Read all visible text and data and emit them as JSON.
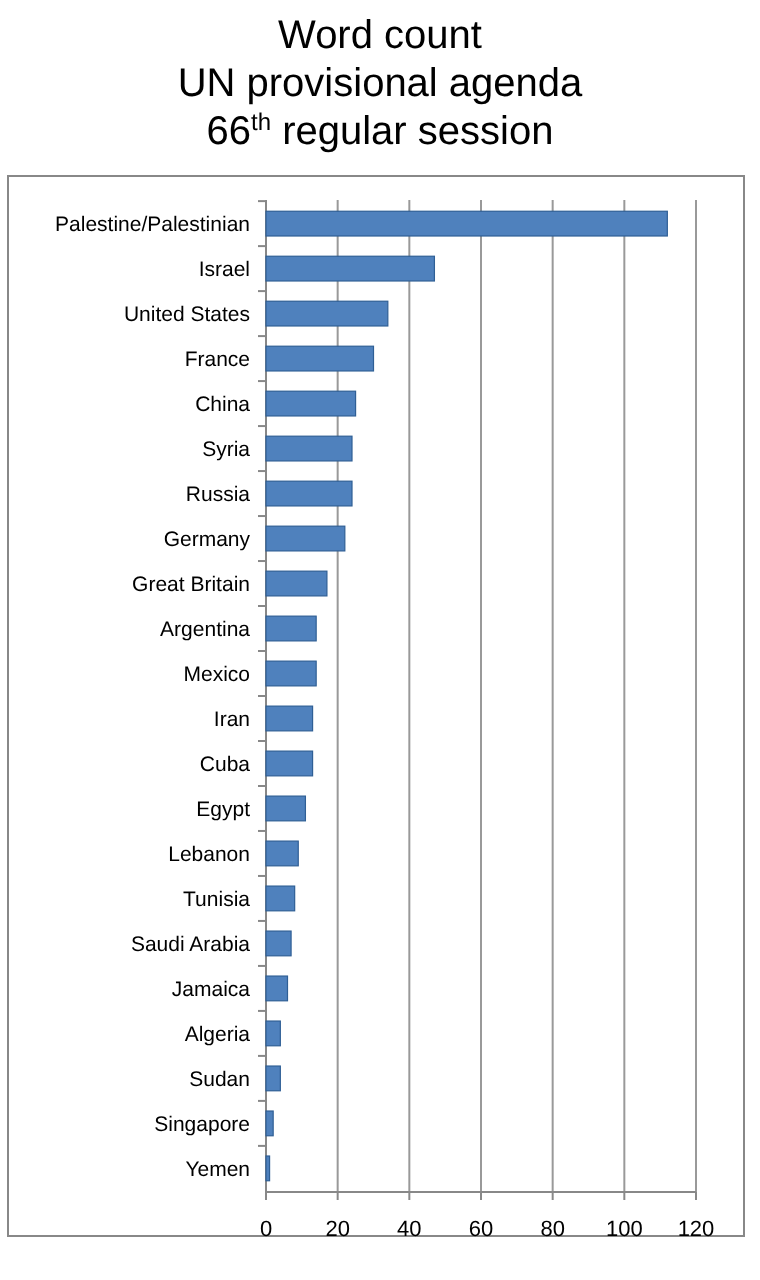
{
  "chart_data": {
    "type": "bar",
    "orientation": "horizontal",
    "title": "Word count\nUN provisional agenda\n66$^{th}$ regular session",
    "categories": [
      "Palestine/Palestinian",
      "Israel",
      "United States",
      "France",
      "China",
      "Syria",
      "Russia",
      "Germany",
      "Great Britain",
      "Argentina",
      "Mexico",
      "Iran",
      "Cuba",
      "Egypt",
      "Lebanon",
      "Tunisia",
      "Saudi Arabia",
      "Jamaica",
      "Algeria",
      "Sudan",
      "Singapore",
      "Yemen"
    ],
    "values": [
      112,
      47,
      34,
      30,
      25,
      24,
      24,
      22,
      17,
      14,
      14,
      13,
      13,
      11,
      9,
      8,
      7,
      6,
      4,
      4,
      2,
      1
    ],
    "color": "#4f81bd",
    "xlim": [
      0,
      120
    ],
    "xticks": [
      0,
      20,
      40,
      60,
      80,
      100,
      120
    ],
    "grid": "x"
  }
}
